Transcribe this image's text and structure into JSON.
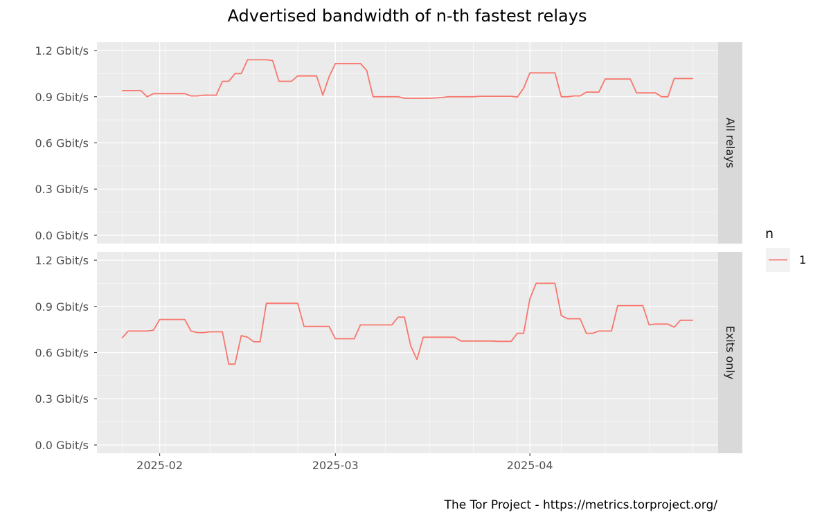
{
  "chart_data": {
    "type": "line",
    "title": "Advertised bandwidth of n-th fastest relays",
    "caption": "The Tor Project - https://metrics.torproject.org/",
    "y_unit": "Gbit/s",
    "ylim": [
      0,
      1.2
    ],
    "y_ticks": [
      "0.0 Gbit/s",
      "0.3 Gbit/s",
      "0.6 Gbit/s",
      "0.9 Gbit/s",
      "1.2 Gbit/s"
    ],
    "xlim": [
      "2025-01-22",
      "2025-05-01"
    ],
    "x_ticks": [
      {
        "date": "2025-02-01",
        "label": "2025-02"
      },
      {
        "date": "2025-03-01",
        "label": "2025-03"
      },
      {
        "date": "2025-04-01",
        "label": "2025-04"
      }
    ],
    "grid": true,
    "legend": {
      "title": "n",
      "position": "right",
      "entries": [
        {
          "label": "1",
          "color": "#f8766d"
        }
      ]
    },
    "series_color": "#f8766d",
    "panels": [
      {
        "label": "All relays",
        "series": [
          {
            "name": "1",
            "points": [
              [
                "2025-01-26",
                0.94
              ],
              [
                "2025-01-27",
                0.94
              ],
              [
                "2025-01-28",
                0.94
              ],
              [
                "2025-01-29",
                0.94
              ],
              [
                "2025-01-30",
                0.9
              ],
              [
                "2025-01-31",
                0.92
              ],
              [
                "2025-02-01",
                0.92
              ],
              [
                "2025-02-02",
                0.92
              ],
              [
                "2025-02-03",
                0.92
              ],
              [
                "2025-02-04",
                0.92
              ],
              [
                "2025-02-05",
                0.92
              ],
              [
                "2025-02-06",
                0.905
              ],
              [
                "2025-02-07",
                0.905
              ],
              [
                "2025-02-08",
                0.91
              ],
              [
                "2025-02-09",
                0.91
              ],
              [
                "2025-02-10",
                0.91
              ],
              [
                "2025-02-11",
                1.0
              ],
              [
                "2025-02-12",
                1.0
              ],
              [
                "2025-02-13",
                1.05
              ],
              [
                "2025-02-14",
                1.05
              ],
              [
                "2025-02-15",
                1.14
              ],
              [
                "2025-02-16",
                1.14
              ],
              [
                "2025-02-17",
                1.14
              ],
              [
                "2025-02-18",
                1.14
              ],
              [
                "2025-02-19",
                1.135
              ],
              [
                "2025-02-20",
                1.0
              ],
              [
                "2025-02-21",
                1.0
              ],
              [
                "2025-02-22",
                1.0
              ],
              [
                "2025-02-23",
                1.035
              ],
              [
                "2025-02-24",
                1.035
              ],
              [
                "2025-02-25",
                1.035
              ],
              [
                "2025-02-26",
                1.035
              ],
              [
                "2025-02-27",
                0.91
              ],
              [
                "2025-02-28",
                1.03
              ],
              [
                "2025-03-01",
                1.115
              ],
              [
                "2025-03-02",
                1.115
              ],
              [
                "2025-03-03",
                1.115
              ],
              [
                "2025-03-04",
                1.115
              ],
              [
                "2025-03-05",
                1.115
              ],
              [
                "2025-03-06",
                1.07
              ],
              [
                "2025-03-07",
                0.9
              ],
              [
                "2025-03-08",
                0.9
              ],
              [
                "2025-03-09",
                0.9
              ],
              [
                "2025-03-10",
                0.9
              ],
              [
                "2025-03-11",
                0.9
              ],
              [
                "2025-03-12",
                0.89
              ],
              [
                "2025-03-13",
                0.89
              ],
              [
                "2025-03-14",
                0.89
              ],
              [
                "2025-03-15",
                0.89
              ],
              [
                "2025-03-16",
                0.89
              ],
              [
                "2025-03-17",
                0.892
              ],
              [
                "2025-03-18",
                0.895
              ],
              [
                "2025-03-19",
                0.9
              ],
              [
                "2025-03-20",
                0.9
              ],
              [
                "2025-03-21",
                0.9
              ],
              [
                "2025-03-22",
                0.9
              ],
              [
                "2025-03-23",
                0.9
              ],
              [
                "2025-03-24",
                0.903
              ],
              [
                "2025-03-25",
                0.903
              ],
              [
                "2025-03-26",
                0.903
              ],
              [
                "2025-03-27",
                0.903
              ],
              [
                "2025-03-28",
                0.903
              ],
              [
                "2025-03-29",
                0.903
              ],
              [
                "2025-03-30",
                0.898
              ],
              [
                "2025-03-31",
                0.955
              ],
              [
                "2025-04-01",
                1.055
              ],
              [
                "2025-04-02",
                1.055
              ],
              [
                "2025-04-03",
                1.055
              ],
              [
                "2025-04-04",
                1.055
              ],
              [
                "2025-04-05",
                1.055
              ],
              [
                "2025-04-06",
                0.9
              ],
              [
                "2025-04-07",
                0.9
              ],
              [
                "2025-04-08",
                0.905
              ],
              [
                "2025-04-09",
                0.905
              ],
              [
                "2025-04-10",
                0.93
              ],
              [
                "2025-04-11",
                0.93
              ],
              [
                "2025-04-12",
                0.93
              ],
              [
                "2025-04-13",
                1.015
              ],
              [
                "2025-04-14",
                1.015
              ],
              [
                "2025-04-15",
                1.015
              ],
              [
                "2025-04-16",
                1.015
              ],
              [
                "2025-04-17",
                1.015
              ],
              [
                "2025-04-18",
                0.925
              ],
              [
                "2025-04-19",
                0.925
              ],
              [
                "2025-04-20",
                0.925
              ],
              [
                "2025-04-21",
                0.925
              ],
              [
                "2025-04-22",
                0.9
              ],
              [
                "2025-04-23",
                0.9
              ],
              [
                "2025-04-24",
                1.018
              ],
              [
                "2025-04-25",
                1.018
              ],
              [
                "2025-04-26",
                1.018
              ],
              [
                "2025-04-27",
                1.018
              ]
            ]
          }
        ]
      },
      {
        "label": "Exits only",
        "series": [
          {
            "name": "1",
            "points": [
              [
                "2025-01-26",
                0.695
              ],
              [
                "2025-01-27",
                0.74
              ],
              [
                "2025-01-28",
                0.74
              ],
              [
                "2025-01-29",
                0.74
              ],
              [
                "2025-01-30",
                0.74
              ],
              [
                "2025-01-31",
                0.745
              ],
              [
                "2025-02-01",
                0.815
              ],
              [
                "2025-02-02",
                0.815
              ],
              [
                "2025-02-03",
                0.815
              ],
              [
                "2025-02-04",
                0.815
              ],
              [
                "2025-02-05",
                0.815
              ],
              [
                "2025-02-06",
                0.74
              ],
              [
                "2025-02-07",
                0.73
              ],
              [
                "2025-02-08",
                0.73
              ],
              [
                "2025-02-09",
                0.735
              ],
              [
                "2025-02-10",
                0.735
              ],
              [
                "2025-02-11",
                0.735
              ],
              [
                "2025-02-12",
                0.525
              ],
              [
                "2025-02-13",
                0.525
              ],
              [
                "2025-02-14",
                0.71
              ],
              [
                "2025-02-15",
                0.7
              ],
              [
                "2025-02-16",
                0.67
              ],
              [
                "2025-02-17",
                0.67
              ],
              [
                "2025-02-18",
                0.92
              ],
              [
                "2025-02-19",
                0.92
              ],
              [
                "2025-02-20",
                0.92
              ],
              [
                "2025-02-21",
                0.92
              ],
              [
                "2025-02-22",
                0.92
              ],
              [
                "2025-02-23",
                0.92
              ],
              [
                "2025-02-24",
                0.77
              ],
              [
                "2025-02-25",
                0.77
              ],
              [
                "2025-02-26",
                0.77
              ],
              [
                "2025-02-27",
                0.77
              ],
              [
                "2025-02-28",
                0.77
              ],
              [
                "2025-03-01",
                0.69
              ],
              [
                "2025-03-02",
                0.69
              ],
              [
                "2025-03-03",
                0.69
              ],
              [
                "2025-03-04",
                0.69
              ],
              [
                "2025-03-05",
                0.78
              ],
              [
                "2025-03-06",
                0.78
              ],
              [
                "2025-03-07",
                0.78
              ],
              [
                "2025-03-08",
                0.78
              ],
              [
                "2025-03-09",
                0.78
              ],
              [
                "2025-03-10",
                0.78
              ],
              [
                "2025-03-11",
                0.83
              ],
              [
                "2025-03-12",
                0.83
              ],
              [
                "2025-03-13",
                0.645
              ],
              [
                "2025-03-14",
                0.555
              ],
              [
                "2025-03-15",
                0.7
              ],
              [
                "2025-03-16",
                0.7
              ],
              [
                "2025-03-17",
                0.7
              ],
              [
                "2025-03-18",
                0.7
              ],
              [
                "2025-03-19",
                0.7
              ],
              [
                "2025-03-20",
                0.7
              ],
              [
                "2025-03-21",
                0.675
              ],
              [
                "2025-03-22",
                0.675
              ],
              [
                "2025-03-23",
                0.675
              ],
              [
                "2025-03-24",
                0.675
              ],
              [
                "2025-03-25",
                0.675
              ],
              [
                "2025-03-26",
                0.675
              ],
              [
                "2025-03-27",
                0.673
              ],
              [
                "2025-03-28",
                0.673
              ],
              [
                "2025-03-29",
                0.673
              ],
              [
                "2025-03-30",
                0.725
              ],
              [
                "2025-03-31",
                0.725
              ],
              [
                "2025-04-01",
                0.95
              ],
              [
                "2025-04-02",
                1.05
              ],
              [
                "2025-04-03",
                1.05
              ],
              [
                "2025-04-04",
                1.05
              ],
              [
                "2025-04-05",
                1.05
              ],
              [
                "2025-04-06",
                0.84
              ],
              [
                "2025-04-07",
                0.82
              ],
              [
                "2025-04-08",
                0.82
              ],
              [
                "2025-04-09",
                0.82
              ],
              [
                "2025-04-10",
                0.725
              ],
              [
                "2025-04-11",
                0.725
              ],
              [
                "2025-04-12",
                0.74
              ],
              [
                "2025-04-13",
                0.74
              ],
              [
                "2025-04-14",
                0.74
              ],
              [
                "2025-04-15",
                0.905
              ],
              [
                "2025-04-16",
                0.905
              ],
              [
                "2025-04-17",
                0.905
              ],
              [
                "2025-04-18",
                0.905
              ],
              [
                "2025-04-19",
                0.905
              ],
              [
                "2025-04-20",
                0.78
              ],
              [
                "2025-04-21",
                0.785
              ],
              [
                "2025-04-22",
                0.785
              ],
              [
                "2025-04-23",
                0.785
              ],
              [
                "2025-04-24",
                0.765
              ],
              [
                "2025-04-25",
                0.81
              ],
              [
                "2025-04-26",
                0.81
              ],
              [
                "2025-04-27",
                0.81
              ]
            ]
          }
        ]
      }
    ]
  }
}
